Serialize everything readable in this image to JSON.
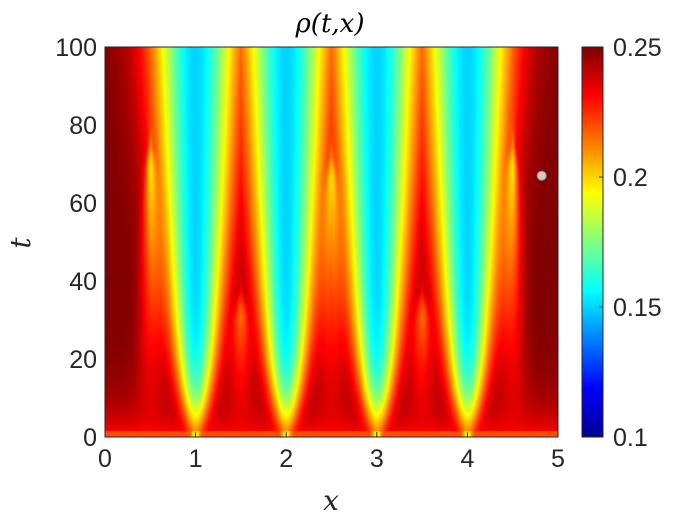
{
  "chart_data": {
    "type": "heatmap",
    "title": "ρ(t,x)",
    "xlabel": "x",
    "ylabel": "t",
    "xlim": [
      0,
      5
    ],
    "ylim": [
      0,
      100
    ],
    "x_ticks": [
      "0",
      "1",
      "2",
      "3",
      "4",
      "5"
    ],
    "y_ticks": [
      "0",
      "20",
      "40",
      "60",
      "80",
      "100"
    ],
    "colorbar": {
      "colormap": "jet",
      "limits": [
        0.1,
        0.25
      ],
      "ticks": [
        "0.1",
        "0.15",
        "0.2",
        "0.25"
      ]
    },
    "field_description": {
      "low_density_minima_x": [
        1,
        2,
        3,
        4
      ],
      "high_density_ridges_x_top": [
        0.05,
        1.5,
        2.5,
        3.5,
        4.95
      ],
      "secondary_bump_peaks": [
        {
          "x": 0.5,
          "t": 68
        },
        {
          "x": 1.5,
          "t": 30
        },
        {
          "x": 2.5,
          "t": 65
        },
        {
          "x": 3.5,
          "t": 30
        },
        {
          "x": 4.5,
          "t": 68
        }
      ],
      "near_t0_value": 0.22
    },
    "marker": {
      "x": 4.82,
      "t": 67,
      "color": "#cccccc"
    }
  }
}
